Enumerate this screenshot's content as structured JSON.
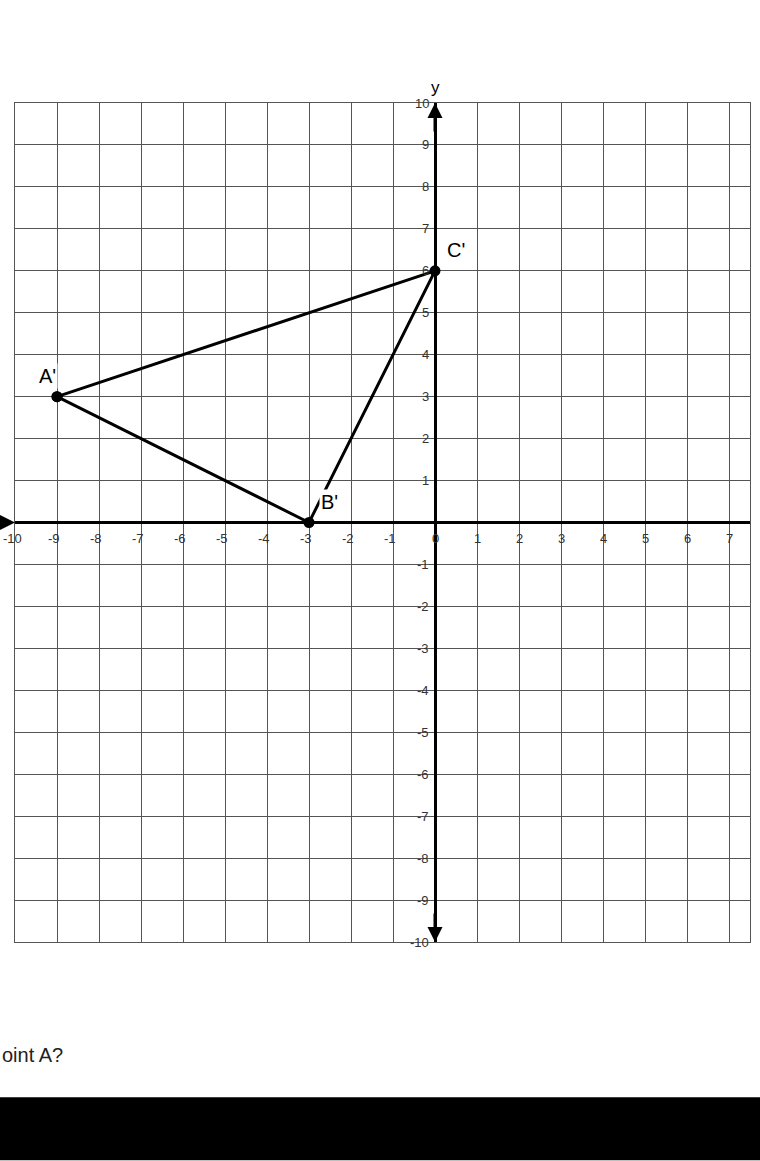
{
  "chart_data": {
    "type": "line",
    "ylabel": "y",
    "x": [
      -9,
      -3,
      0
    ],
    "values": [
      3,
      0,
      6
    ],
    "color": "#000000",
    "marker": "circle",
    "xlim": [
      -10,
      7.5
    ],
    "xticks": [
      -10,
      -9,
      -8,
      -7,
      -6,
      -5,
      -4,
      -3,
      -2,
      -1,
      0,
      1,
      2,
      3,
      4,
      5,
      6,
      7
    ],
    "ylim": [
      -10,
      10
    ],
    "yticks": [
      -10,
      -9,
      -8,
      -7,
      -6,
      -5,
      -4,
      -3,
      -2,
      -1,
      1,
      2,
      3,
      4,
      5,
      6,
      7,
      8,
      9,
      10
    ],
    "grid": true,
    "annotations": [
      {
        "text": "A'",
        "x": -9,
        "y": 3
      },
      {
        "text": "B'",
        "x": -3,
        "y": 0
      },
      {
        "text": "C'",
        "x": 0,
        "y": 6
      },
      {
        "text": "oint A?"
      }
    ]
  }
}
